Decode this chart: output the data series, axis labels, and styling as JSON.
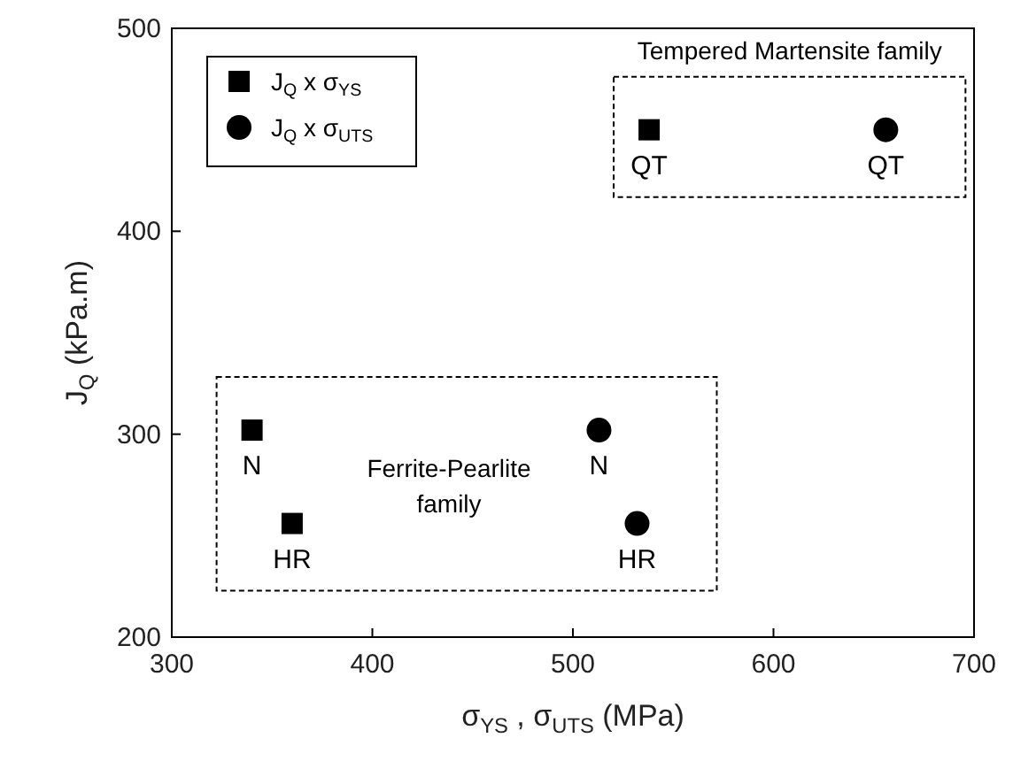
{
  "chart_data": {
    "type": "scatter",
    "xlabel": "σ$_{YS}$  ,  σ$_{UTS}$ (MPa)",
    "ylabel": "J$_{Q}$ (kPa.m)",
    "xlim": [
      300,
      700
    ],
    "xticks": [
      300,
      400,
      500,
      600,
      700
    ],
    "ylim": [
      200,
      500
    ],
    "yticks": [
      200,
      300,
      400,
      500
    ],
    "legend": "top left",
    "grid": false,
    "series": [
      {
        "name": "J$_{Q}$ x σ$_{YS}$",
        "color": "#000000",
        "marker": "square",
        "x": [
          340,
          360,
          538
        ],
        "values": [
          302,
          256,
          450
        ]
      },
      {
        "name": "J$_{Q}$ x σ$_{UTS}$",
        "color": "#000000",
        "marker": "circle",
        "x": [
          513,
          532,
          656
        ],
        "values": [
          302,
          256,
          450
        ]
      }
    ],
    "annotations": [
      {
        "text": "N",
        "x": 340,
        "y": 302
      },
      {
        "text": "HR",
        "x": 360,
        "y": 256
      },
      {
        "text": "QT",
        "x": 538,
        "y": 450
      },
      {
        "text": "N",
        "x": 513,
        "y": 302
      },
      {
        "text": "HR",
        "x": 532,
        "y": 256
      },
      {
        "text": "QT",
        "x": 656,
        "y": 450
      },
      "Tempered Martensite family",
      "Ferrite-Pearlite family"
    ]
  }
}
